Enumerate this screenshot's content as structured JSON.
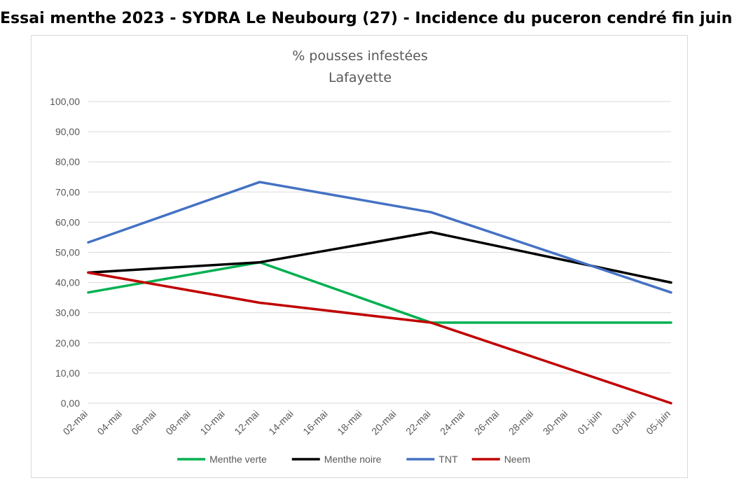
{
  "page": {
    "header_title": "Essai menthe 2023 - SYDRA Le Neubourg (27) - Incidence du puceron cendré fin juin"
  },
  "chart_data": {
    "type": "line",
    "title": "% pousses infestées",
    "subtitle": "Lafayette",
    "xlabel": "",
    "ylabel": "",
    "categories": [
      "02-mai",
      "04-mai",
      "06-mai",
      "08-mai",
      "10-mai",
      "12-mai",
      "14-mai",
      "16-mai",
      "18-mai",
      "20-mai",
      "22-mai",
      "24-mai",
      "26-mai",
      "28-mai",
      "30-mai",
      "01-juin",
      "03-juin",
      "05-juin"
    ],
    "ylim": [
      0,
      100
    ],
    "yticks": [
      "0,00",
      "10,00",
      "20,00",
      "30,00",
      "40,00",
      "50,00",
      "60,00",
      "70,00",
      "80,00",
      "90,00",
      "100,00"
    ],
    "grid": true,
    "legend_position": "bottom",
    "series": [
      {
        "name": "Menthe verte",
        "color": "#00b050",
        "points": [
          {
            "x": "02-mai",
            "y": 36.7
          },
          {
            "x": "12-mai",
            "y": 46.7
          },
          {
            "x": "22-mai",
            "y": 26.7
          },
          {
            "x": "05-juin",
            "y": 26.7
          }
        ]
      },
      {
        "name": "Menthe noire",
        "color": "#000000",
        "points": [
          {
            "x": "02-mai",
            "y": 43.3
          },
          {
            "x": "12-mai",
            "y": 46.7
          },
          {
            "x": "22-mai",
            "y": 56.7
          },
          {
            "x": "05-juin",
            "y": 40.0
          }
        ]
      },
      {
        "name": "TNT",
        "color": "#4472c4",
        "points": [
          {
            "x": "02-mai",
            "y": 53.3
          },
          {
            "x": "12-mai",
            "y": 73.3
          },
          {
            "x": "22-mai",
            "y": 63.3
          },
          {
            "x": "05-juin",
            "y": 36.7
          }
        ]
      },
      {
        "name": "Neem",
        "color": "#c00000",
        "points": [
          {
            "x": "02-mai",
            "y": 43.3
          },
          {
            "x": "12-mai",
            "y": 33.3
          },
          {
            "x": "22-mai",
            "y": 26.7
          },
          {
            "x": "05-juin",
            "y": 0.0
          }
        ]
      }
    ]
  }
}
